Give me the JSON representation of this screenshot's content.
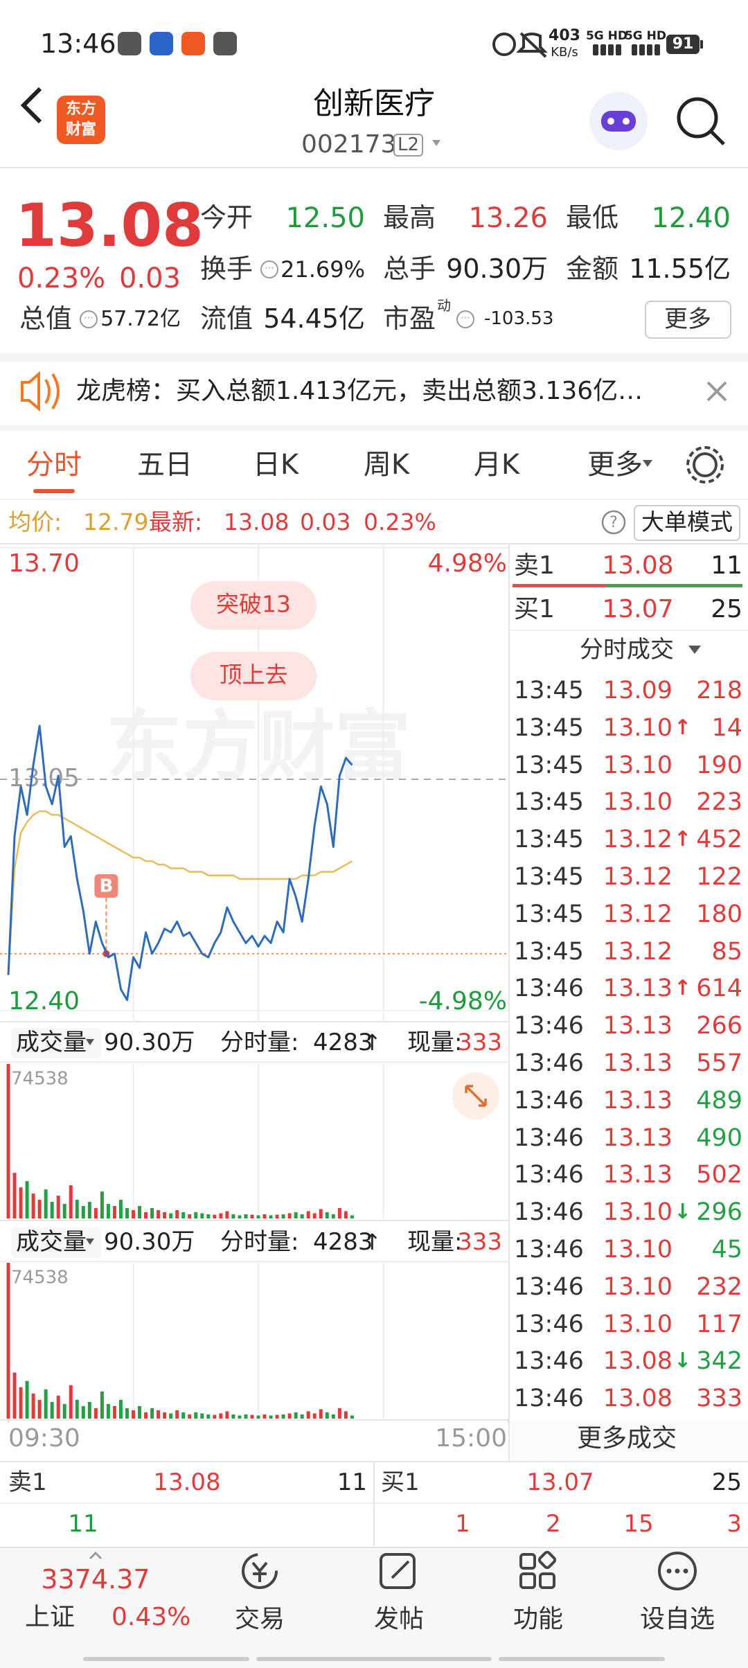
{
  "status_bar": {
    "time": "13:46",
    "speed": "403",
    "speed_unit": "KB/s",
    "network": [
      "5G HD",
      "5G HD"
    ],
    "battery": "91"
  },
  "header": {
    "logo": [
      "东方",
      "财富"
    ],
    "title": "创新医疗",
    "code": "002173",
    "level": "L2"
  },
  "quote": {
    "price": "13.08",
    "change_pct": "0.23%",
    "change": "0.03",
    "stats": [
      {
        "label": "今开",
        "value": "12.50",
        "color": "#1f9a3c"
      },
      {
        "label": "最高",
        "value": "13.26",
        "color": "#e03b3b"
      },
      {
        "label": "最低",
        "value": "12.40",
        "color": "#1f9a3c"
      },
      {
        "label": "换手",
        "value": "21.69%",
        "color": "#222222",
        "info": true
      },
      {
        "label": "总手",
        "value": "90.30万",
        "color": "#222222"
      },
      {
        "label": "金额",
        "value": "11.55亿",
        "color": "#222222"
      },
      {
        "label": "总值",
        "value": "57.72亿",
        "color": "#222222",
        "info": true
      },
      {
        "label": "流值",
        "value": "54.45亿",
        "color": "#222222"
      },
      {
        "label": "市盈",
        "sup": "动",
        "value": "-103.53",
        "color": "#222222",
        "info": true
      }
    ],
    "more": "更多"
  },
  "notice": {
    "text": "龙虎榜：买入总额1.413亿元，卖出总额3.136亿…"
  },
  "tabs": {
    "items": [
      "分时",
      "五日",
      "日K",
      "周K",
      "月K",
      "更多"
    ],
    "active": 0
  },
  "info": {
    "avg_label": "均价:",
    "avg": "12.79",
    "latest_label": "最新:",
    "latest": "13.08",
    "change": "0.03",
    "change_pct": "0.23%",
    "mode": "大单模式"
  },
  "chart_data": [
    {
      "type": "line",
      "watermark": "东方财富",
      "x": [
        0,
        3,
        6,
        9,
        12,
        15,
        18,
        21,
        24,
        27,
        30,
        33,
        36,
        39,
        42,
        45,
        48,
        51,
        54,
        57,
        60,
        63,
        66,
        69,
        72,
        75,
        78,
        81,
        84,
        87,
        90,
        93,
        96,
        99,
        102,
        105,
        108,
        111,
        114,
        117,
        120,
        123,
        126,
        129,
        132,
        135,
        138,
        141,
        144,
        147,
        150,
        153,
        156,
        159,
        162,
        165
      ],
      "xlim": [
        0,
        240
      ],
      "xticks": [
        {
          "value": 0,
          "label": "09:30"
        },
        {
          "value": 240,
          "label": "15:00"
        }
      ],
      "grid_x": [
        60,
        120,
        180
      ],
      "ylim": [
        12.4,
        13.7
      ],
      "yticks": [
        {
          "value": 13.7,
          "label": "13.70"
        },
        13.05,
        {
          "value": 12.4,
          "label": "12.40"
        }
      ],
      "y2lim": [
        -4.98,
        4.98
      ],
      "y2ticks": [
        {
          "value": 4.98,
          "label": "4.98%"
        },
        {
          "value": -4.98,
          "label": "-4.98%"
        }
      ],
      "series": [
        {
          "color": "#2e6bb8",
          "values": [
            12.5,
            12.89,
            13.03,
            12.95,
            13.09,
            13.2,
            13.03,
            12.98,
            13.06,
            12.86,
            12.89,
            12.77,
            12.68,
            12.56,
            12.65,
            12.59,
            12.55,
            12.56,
            12.46,
            12.43,
            12.55,
            12.52,
            12.62,
            12.56,
            12.59,
            12.63,
            12.62,
            12.65,
            12.61,
            12.62,
            12.59,
            12.56,
            12.55,
            12.59,
            12.62,
            12.69,
            12.65,
            12.62,
            12.59,
            12.61,
            12.58,
            12.61,
            12.59,
            12.65,
            12.62,
            12.77,
            12.72,
            12.65,
            12.77,
            12.92,
            13.03,
            12.98,
            12.86,
            13.06,
            13.11,
            13.09
          ]
        },
        {
          "color": "#e6bc5c",
          "values": [
            12.5,
            12.8,
            12.9,
            12.93,
            12.95,
            12.96,
            12.96,
            12.95,
            12.95,
            12.94,
            12.93,
            12.92,
            12.91,
            12.9,
            12.89,
            12.88,
            12.87,
            12.86,
            12.85,
            12.84,
            12.83,
            12.83,
            12.82,
            12.82,
            12.81,
            12.81,
            12.8,
            12.8,
            12.8,
            12.79,
            12.79,
            12.79,
            12.78,
            12.78,
            12.78,
            12.78,
            12.78,
            12.77,
            12.77,
            12.77,
            12.77,
            12.77,
            12.77,
            12.77,
            12.77,
            12.77,
            12.77,
            12.78,
            12.78,
            12.78,
            12.79,
            12.79,
            12.79,
            12.8,
            12.81,
            12.82
          ]
        }
      ],
      "annotations": [
        "突破13",
        "顶上去"
      ],
      "marker": {
        "label": "B",
        "x": 47,
        "y": 12.56
      }
    },
    {
      "type": "bar",
      "label": "成交量",
      "total": "90.30万",
      "period_label": "分时量:",
      "period_volume": "4283",
      "period_arrow": "↑",
      "now_label": "现量:",
      "now_volume": "333",
      "x": [
        0,
        3,
        6,
        9,
        12,
        15,
        18,
        21,
        24,
        27,
        30,
        33,
        36,
        39,
        42,
        45,
        48,
        51,
        54,
        57,
        60,
        63,
        66,
        69,
        72,
        75,
        78,
        81,
        84,
        87,
        90,
        93,
        96,
        99,
        102,
        105,
        108,
        111,
        114,
        117,
        120,
        123,
        126,
        129,
        132,
        135,
        138,
        141,
        144,
        147,
        150,
        153,
        156,
        159,
        162,
        165
      ],
      "xlim": [
        0,
        240
      ],
      "ylim": [
        0,
        74538
      ],
      "yticks": [
        74538
      ],
      "up_color": "#e03b3b",
      "down_color": "#23a045",
      "values": [
        74538,
        22000,
        15000,
        18000,
        12000,
        9000,
        14000,
        8000,
        11000,
        7000,
        16000,
        9000,
        6000,
        8000,
        5000,
        13000,
        7000,
        6000,
        9000,
        5000,
        4000,
        6000,
        3000,
        5000,
        4000,
        3000,
        2500,
        4000,
        3000,
        2000,
        3000,
        2500,
        2000,
        1800,
        2500,
        3500,
        2000,
        1500,
        2000,
        1800,
        1500,
        2000,
        1500,
        1800,
        2000,
        2500,
        3000,
        2000,
        3500,
        2500,
        4500,
        3000,
        2000,
        5000,
        3500,
        1500
      ]
    }
  ],
  "order_book": {
    "ask": {
      "label": "卖1",
      "price": "13.08",
      "volume": "11"
    },
    "bid": {
      "label": "买1",
      "price": "13.07",
      "volume": "25"
    }
  },
  "trades": {
    "title": "分时成交",
    "more": "更多成交",
    "rows": [
      {
        "time": "13:45",
        "price": "13.09",
        "volume": "218",
        "color": "#e03b3b"
      },
      {
        "time": "13:45",
        "price": "13.10",
        "arrow": "↑",
        "volume": "14",
        "color": "#e03b3b"
      },
      {
        "time": "13:45",
        "price": "13.10",
        "volume": "190",
        "color": "#e03b3b"
      },
      {
        "time": "13:45",
        "price": "13.10",
        "volume": "223",
        "color": "#e03b3b"
      },
      {
        "time": "13:45",
        "price": "13.12",
        "arrow": "↑",
        "volume": "452",
        "color": "#e03b3b"
      },
      {
        "time": "13:45",
        "price": "13.12",
        "volume": "122",
        "color": "#e03b3b"
      },
      {
        "time": "13:45",
        "price": "13.12",
        "volume": "180",
        "color": "#e03b3b"
      },
      {
        "time": "13:45",
        "price": "13.12",
        "volume": "85",
        "color": "#e03b3b"
      },
      {
        "time": "13:46",
        "price": "13.13",
        "arrow": "↑",
        "volume": "614",
        "color": "#e03b3b"
      },
      {
        "time": "13:46",
        "price": "13.13",
        "volume": "266",
        "color": "#e03b3b"
      },
      {
        "time": "13:46",
        "price": "13.13",
        "volume": "557",
        "color": "#e03b3b"
      },
      {
        "time": "13:46",
        "price": "13.13",
        "volume": "489",
        "color": "#23a045"
      },
      {
        "time": "13:46",
        "price": "13.13",
        "volume": "490",
        "color": "#23a045"
      },
      {
        "time": "13:46",
        "price": "13.13",
        "volume": "502",
        "color": "#e03b3b"
      },
      {
        "time": "13:46",
        "price": "13.10",
        "arrow": "↓",
        "volume": "296",
        "color": "#23a045"
      },
      {
        "time": "13:46",
        "price": "13.10",
        "volume": "45",
        "color": "#23a045"
      },
      {
        "time": "13:46",
        "price": "13.10",
        "volume": "232",
        "color": "#e03b3b"
      },
      {
        "time": "13:46",
        "price": "13.10",
        "volume": "117",
        "color": "#e03b3b"
      },
      {
        "time": "13:46",
        "price": "13.08",
        "arrow": "↓",
        "volume": "342",
        "color": "#23a045"
      },
      {
        "time": "13:46",
        "price": "13.08",
        "volume": "333",
        "color": "#e03b3b"
      }
    ]
  },
  "queue": {
    "ask": [
      "11"
    ],
    "bid": [
      "1",
      "2",
      "15",
      "3"
    ]
  },
  "nav": {
    "index": {
      "value": "3374.37",
      "name": "上证",
      "change": "0.43%"
    },
    "items": [
      "交易",
      "发帖",
      "功能",
      "设自选"
    ]
  }
}
